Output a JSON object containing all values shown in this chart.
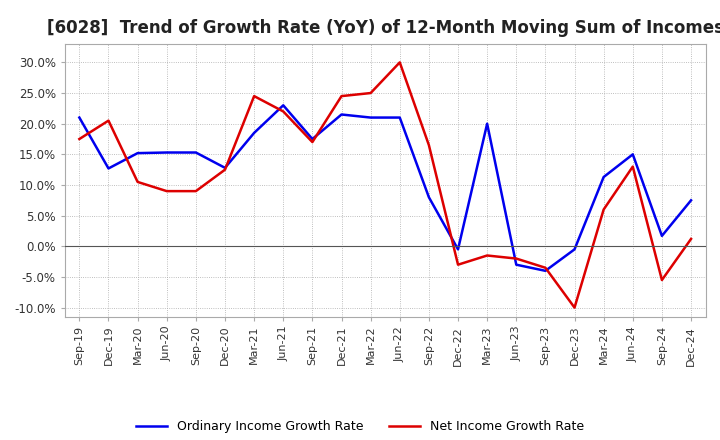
{
  "title": "[6028]  Trend of Growth Rate (YoY) of 12-Month Moving Sum of Incomes",
  "title_fontsize": 12,
  "ylim": [
    -0.115,
    0.33
  ],
  "yticks": [
    -0.1,
    -0.05,
    0.0,
    0.05,
    0.1,
    0.15,
    0.2,
    0.25,
    0.3
  ],
  "background_color": "#ffffff",
  "grid_color": "#aaaaaa",
  "ordinary_color": "#0000ee",
  "net_color": "#dd0000",
  "legend_labels": [
    "Ordinary Income Growth Rate",
    "Net Income Growth Rate"
  ],
  "x_labels": [
    "Sep-19",
    "Dec-19",
    "Mar-20",
    "Jun-20",
    "Sep-20",
    "Dec-20",
    "Mar-21",
    "Jun-21",
    "Sep-21",
    "Dec-21",
    "Mar-22",
    "Jun-22",
    "Sep-22",
    "Dec-22",
    "Mar-23",
    "Jun-23",
    "Sep-23",
    "Dec-23",
    "Mar-24",
    "Jun-24",
    "Sep-24",
    "Dec-24"
  ],
  "ordinary_income": [
    0.21,
    0.127,
    0.152,
    0.153,
    0.153,
    0.128,
    0.185,
    0.23,
    0.175,
    0.215,
    0.21,
    0.21,
    0.08,
    -0.005,
    0.2,
    -0.03,
    -0.04,
    -0.005,
    0.113,
    0.15,
    0.017,
    0.075
  ],
  "net_income": [
    0.175,
    0.205,
    0.105,
    0.09,
    0.09,
    0.125,
    0.245,
    0.22,
    0.17,
    0.245,
    0.25,
    0.3,
    0.165,
    -0.03,
    -0.015,
    -0.02,
    -0.035,
    -0.1,
    0.06,
    0.13,
    -0.055,
    0.012
  ]
}
